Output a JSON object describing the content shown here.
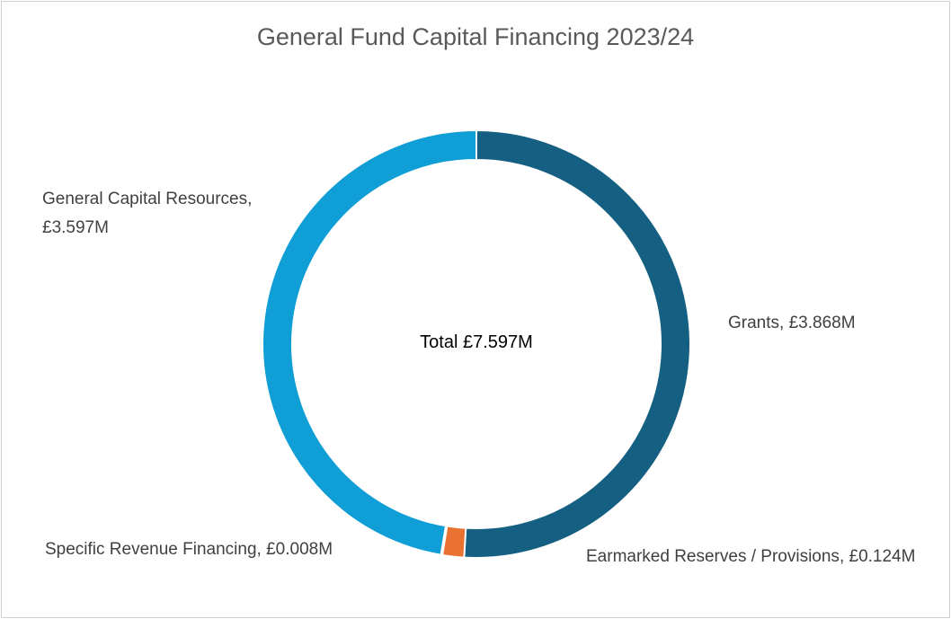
{
  "chart_data": {
    "type": "donut",
    "title": "General Fund Capital Financing 2023/24",
    "center_label": "Total £7.597M",
    "categories": [
      "Grants",
      "Earmarked Reserves / Provisions",
      "Specific Revenue Financing",
      "General Capital Resources"
    ],
    "values": [
      3.868,
      0.124,
      0.008,
      3.597
    ],
    "value_labels": [
      "£3.868M",
      "£0.124M",
      "£0.008M",
      "£3.597M"
    ],
    "label_separator": ", ",
    "colors": [
      "#156082",
      "#e97132",
      "#196b24",
      "#0f9ed5"
    ]
  }
}
